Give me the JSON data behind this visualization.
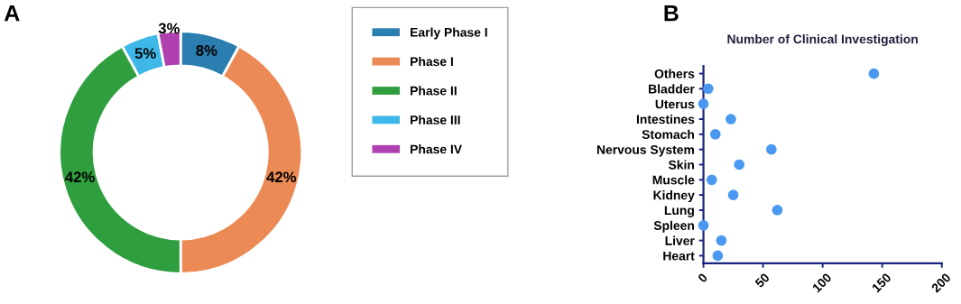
{
  "chart_data": [
    {
      "type": "donut",
      "categories": [
        "Early Phase I",
        "Phase I",
        "Phase II",
        "Phase III",
        "Phase IV"
      ],
      "values": [
        8,
        42,
        42,
        5,
        3
      ],
      "colors": [
        "#2a7fb0",
        "#ec8a55",
        "#2e9e3e",
        "#3db8e8",
        "#b040b0"
      ],
      "value_labels": [
        "8%",
        "42%",
        "42%",
        "5%",
        "3%"
      ],
      "legend": "right",
      "annotations": [
        "A"
      ]
    },
    {
      "type": "scatter",
      "orientation": "horizontal",
      "title": "Number of Clinical Investigation",
      "categories": [
        "Others",
        "Bladder",
        "Uterus",
        "Intestines",
        "Stomach",
        "Nervous System",
        "Skin",
        "Muscle",
        "Kidney",
        "Lung",
        "Spleen",
        "Liver",
        "Heart"
      ],
      "values": [
        143,
        4,
        0,
        23,
        10,
        57,
        30,
        7,
        25,
        62,
        0,
        15,
        12
      ],
      "color": "#4a98f0",
      "xlim": [
        0,
        200
      ],
      "xticks": [
        0,
        50,
        100,
        150,
        200
      ],
      "grid": false,
      "marker": "circle",
      "annotations": [
        "B"
      ]
    }
  ]
}
